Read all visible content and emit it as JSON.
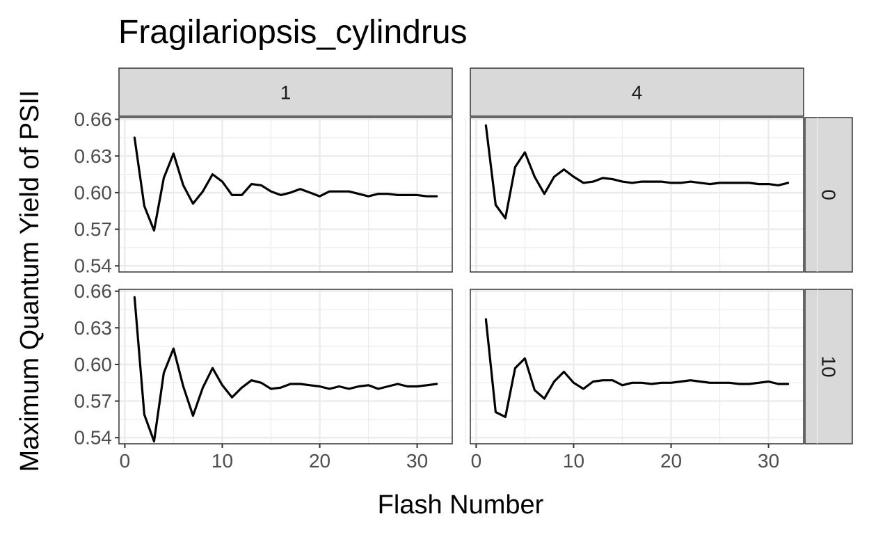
{
  "chart_data": {
    "type": "line",
    "title": "Fragilariopsis_cylindrus",
    "xlabel": "Flash Number",
    "ylabel": "Maximum Quantum Yield of PSII",
    "xlim": [
      -0.6,
      33.6
    ],
    "ylim": [
      0.535,
      0.6615
    ],
    "x_ticks": [
      0,
      10,
      20,
      30
    ],
    "x_tick_labels": [
      "0",
      "10",
      "20",
      "30"
    ],
    "y_ticks": [
      0.54,
      0.57,
      0.6,
      0.63,
      0.66
    ],
    "y_tick_labels": [
      "0.54",
      "0.57",
      "0.60",
      "0.63",
      "0.66"
    ],
    "grid": true,
    "facet_columns": [
      "1",
      "4"
    ],
    "facet_rows": [
      "0",
      "10"
    ],
    "x": [
      1,
      2,
      3,
      4,
      5,
      6,
      7,
      8,
      9,
      10,
      11,
      12,
      13,
      14,
      15,
      16,
      17,
      18,
      19,
      20,
      21,
      22,
      23,
      24,
      25,
      26,
      27,
      28,
      29,
      30,
      31,
      32
    ],
    "panels": [
      {
        "col": "1",
        "row": "0",
        "values": [
          0.645,
          0.589,
          0.569,
          0.612,
          0.632,
          0.606,
          0.591,
          0.601,
          0.615,
          0.609,
          0.598,
          0.598,
          0.607,
          0.606,
          0.601,
          0.598,
          0.6,
          0.603,
          0.6,
          0.597,
          0.601,
          0.601,
          0.601,
          0.599,
          0.597,
          0.599,
          0.599,
          0.598,
          0.598,
          0.598,
          0.597,
          0.597
        ]
      },
      {
        "col": "4",
        "row": "0",
        "values": [
          0.655,
          0.59,
          0.579,
          0.621,
          0.633,
          0.613,
          0.599,
          0.613,
          0.619,
          0.613,
          0.608,
          0.609,
          0.612,
          0.611,
          0.609,
          0.608,
          0.609,
          0.609,
          0.609,
          0.608,
          0.608,
          0.609,
          0.608,
          0.607,
          0.608,
          0.608,
          0.608,
          0.608,
          0.607,
          0.607,
          0.606,
          0.608
        ]
      },
      {
        "col": "1",
        "row": "10",
        "values": [
          0.655,
          0.559,
          0.537,
          0.593,
          0.613,
          0.582,
          0.558,
          0.581,
          0.597,
          0.583,
          0.573,
          0.581,
          0.587,
          0.585,
          0.58,
          0.581,
          0.584,
          0.584,
          0.583,
          0.582,
          0.58,
          0.582,
          0.58,
          0.582,
          0.583,
          0.58,
          0.582,
          0.584,
          0.582,
          0.582,
          0.583,
          0.584
        ]
      },
      {
        "col": "4",
        "row": "10",
        "values": [
          0.637,
          0.561,
          0.557,
          0.597,
          0.605,
          0.579,
          0.572,
          0.586,
          0.594,
          0.585,
          0.58,
          0.586,
          0.587,
          0.587,
          0.583,
          0.585,
          0.585,
          0.584,
          0.585,
          0.585,
          0.586,
          0.587,
          0.586,
          0.585,
          0.585,
          0.585,
          0.584,
          0.584,
          0.585,
          0.586,
          0.584,
          0.584
        ]
      }
    ]
  }
}
